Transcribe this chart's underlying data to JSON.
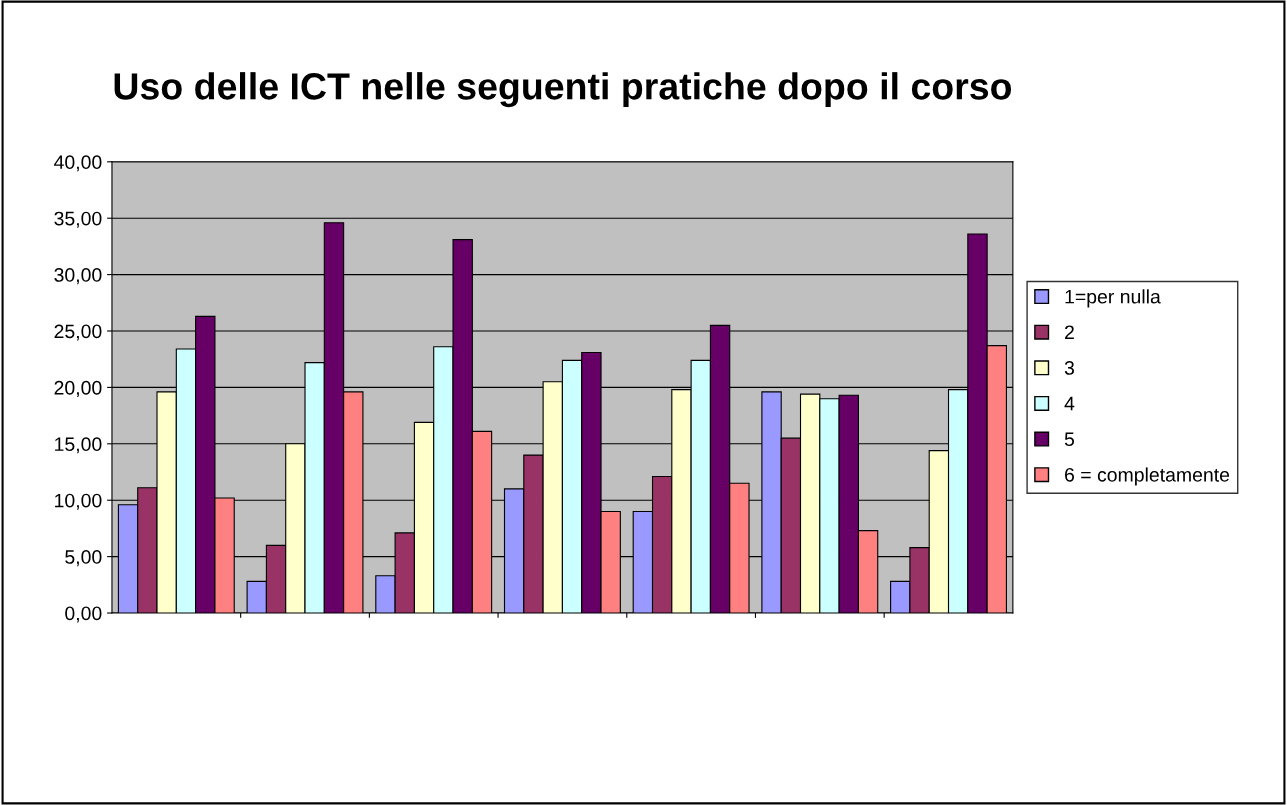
{
  "chart_data": {
    "type": "bar",
    "title": "Uso delle ICT nelle seguenti pratiche dopo il corso",
    "categories": [
      null,
      null,
      null,
      null,
      null,
      null,
      null
    ],
    "series": [
      {
        "name": "1=per nulla",
        "color": "#9999ff",
        "values": [
          9.6,
          2.8,
          3.3,
          11.0,
          9.0,
          19.6,
          2.8
        ]
      },
      {
        "name": "2",
        "color": "#993366",
        "values": [
          11.1,
          6.0,
          7.1,
          14.0,
          12.1,
          15.5,
          5.8
        ]
      },
      {
        "name": "3",
        "color": "#ffffcc",
        "values": [
          19.6,
          15.0,
          16.9,
          20.5,
          19.8,
          19.4,
          14.4
        ]
      },
      {
        "name": "4",
        "color": "#ccffff",
        "values": [
          23.4,
          22.2,
          23.6,
          22.4,
          22.4,
          19.0,
          19.8
        ]
      },
      {
        "name": "5",
        "color": "#660066",
        "values": [
          26.3,
          34.6,
          33.1,
          23.1,
          25.5,
          19.3,
          33.6
        ]
      },
      {
        "name": "6 = completamente",
        "color": "#ff8080",
        "values": [
          10.2,
          19.6,
          16.1,
          9.0,
          11.5,
          7.3,
          23.7
        ]
      }
    ],
    "ylim": [
      0,
      40
    ],
    "yticks": [
      {
        "value": 0,
        "label": "0,00"
      },
      {
        "value": 5,
        "label": "5,00"
      },
      {
        "value": 10,
        "label": "10,00"
      },
      {
        "value": 15,
        "label": "15,00"
      },
      {
        "value": 20,
        "label": "20,00"
      },
      {
        "value": 25,
        "label": "25,00"
      },
      {
        "value": 30,
        "label": "30,00"
      },
      {
        "value": 35,
        "label": "35,00"
      },
      {
        "value": 40,
        "label": "40,00"
      }
    ],
    "grid": "y",
    "legend": "right"
  }
}
